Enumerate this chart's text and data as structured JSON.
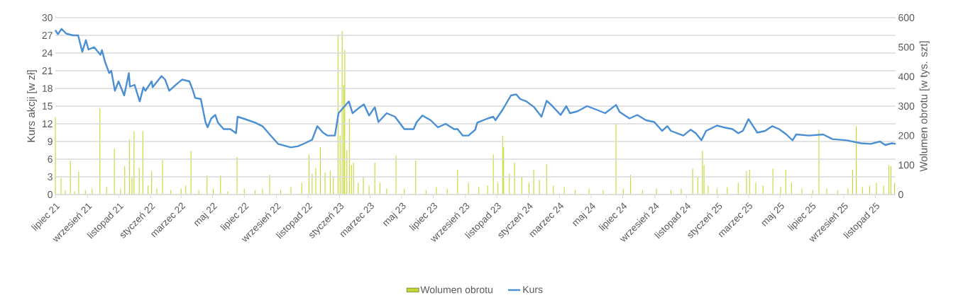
{
  "chart_data": {
    "type": "line",
    "ylabel": "Kurs akcji [w zł]",
    "y2label": "Wolumen obrotu [w tys. szt]",
    "xlim": [
      "2021-07-01",
      "2025-12-10"
    ],
    "xticks": [
      {
        "value": "2021-07-01",
        "label": "lipiec 21"
      },
      {
        "value": "2021-09-01",
        "label": "wrzesień 21"
      },
      {
        "value": "2021-11-01",
        "label": "listopad 21"
      },
      {
        "value": "2022-01-01",
        "label": "styczeń 22"
      },
      {
        "value": "2022-03-01",
        "label": "marzec 22"
      },
      {
        "value": "2022-05-01",
        "label": "maj 22"
      },
      {
        "value": "2022-07-01",
        "label": "lipiec 22"
      },
      {
        "value": "2022-09-01",
        "label": "wrzesień 22"
      },
      {
        "value": "2022-11-01",
        "label": "listopad 22"
      },
      {
        "value": "2023-01-01",
        "label": "styczeń 23"
      },
      {
        "value": "2023-03-01",
        "label": "marzec 23"
      },
      {
        "value": "2023-05-01",
        "label": "maj 23"
      },
      {
        "value": "2023-07-01",
        "label": "lipiec 23"
      },
      {
        "value": "2023-09-01",
        "label": "wrzesień 23"
      },
      {
        "value": "2023-11-01",
        "label": "listopad 23"
      },
      {
        "value": "2024-01-01",
        "label": "styczeń 24"
      },
      {
        "value": "2024-03-01",
        "label": "marzec 24"
      },
      {
        "value": "2024-05-01",
        "label": "maj 24"
      },
      {
        "value": "2024-07-01",
        "label": "lipiec 24"
      },
      {
        "value": "2024-09-01",
        "label": "wrzesień 24"
      },
      {
        "value": "2024-11-01",
        "label": "listopad 24"
      },
      {
        "value": "2025-01-01",
        "label": "styczeń 25"
      },
      {
        "value": "2025-03-01",
        "label": "marzec 25"
      },
      {
        "value": "2025-05-01",
        "label": "maj 25"
      },
      {
        "value": "2025-07-01",
        "label": "lipiec 25"
      },
      {
        "value": "2025-09-01",
        "label": "wrzesień 25"
      },
      {
        "value": "2025-11-01",
        "label": "listopad 25"
      }
    ],
    "ylim": [
      0,
      30
    ],
    "yticks": [
      0,
      3,
      6,
      9,
      12,
      15,
      18,
      21,
      24,
      27,
      30
    ],
    "y2lim": [
      0,
      600
    ],
    "y2ticks": [
      0,
      100,
      200,
      300,
      400,
      500,
      600
    ],
    "grid": "y",
    "legend": "bottom",
    "series": [
      {
        "name": "Wolumen obrotu",
        "type": "bar",
        "axis": "y2",
        "color": "#c3d82e",
        "x": [
          "2021-07-01",
          "2021-07-12",
          "2021-07-20",
          "2021-07-30",
          "2021-08-07",
          "2021-08-15",
          "2021-08-28",
          "2021-09-10",
          "2021-09-25",
          "2021-10-08",
          "2021-10-23",
          "2021-11-04",
          "2021-11-12",
          "2021-11-21",
          "2021-11-26",
          "2021-11-30",
          "2021-12-10",
          "2021-12-17",
          "2021-12-27",
          "2022-01-03",
          "2022-01-13",
          "2022-01-24",
          "2022-02-09",
          "2022-03-01",
          "2022-03-10",
          "2022-03-20",
          "2022-04-04",
          "2022-04-20",
          "2022-05-02",
          "2022-05-16",
          "2022-05-30",
          "2022-06-17",
          "2022-07-01",
          "2022-07-22",
          "2022-08-05",
          "2022-08-19",
          "2022-09-09",
          "2022-09-29",
          "2022-10-20",
          "2022-11-03",
          "2022-11-09",
          "2022-11-16",
          "2022-11-25",
          "2022-12-04",
          "2022-12-14",
          "2022-12-20",
          "2022-12-29",
          "2023-01-02",
          "2023-01-06",
          "2023-01-09",
          "2023-01-11",
          "2023-01-15",
          "2023-01-20",
          "2023-01-24",
          "2023-01-28",
          "2023-02-06",
          "2023-02-16",
          "2023-02-27",
          "2023-03-10",
          "2023-03-20",
          "2023-04-02",
          "2023-04-20",
          "2023-05-06",
          "2023-05-28",
          "2023-06-17",
          "2023-07-07",
          "2023-07-28",
          "2023-08-17",
          "2023-09-07",
          "2023-09-27",
          "2023-10-14",
          "2023-10-25",
          "2023-11-03",
          "2023-11-12",
          "2023-11-14",
          "2023-11-25",
          "2023-12-05",
          "2023-12-19",
          "2024-01-02",
          "2024-01-11",
          "2024-01-22",
          "2024-02-05",
          "2024-02-18",
          "2024-03-10",
          "2024-03-31",
          "2024-04-27",
          "2024-05-24",
          "2024-06-18",
          "2024-07-02",
          "2024-07-16",
          "2024-08-08",
          "2024-09-04",
          "2024-10-02",
          "2024-10-22",
          "2024-11-13",
          "2024-11-23",
          "2024-12-02",
          "2024-12-05",
          "2024-12-13",
          "2024-12-30",
          "2025-01-19",
          "2025-02-09",
          "2025-02-25",
          "2025-03-03",
          "2025-03-15",
          "2025-03-29",
          "2025-04-17",
          "2025-05-02",
          "2025-05-12",
          "2025-05-23",
          "2025-06-12",
          "2025-07-03",
          "2025-07-15",
          "2025-07-30",
          "2025-08-20",
          "2025-09-09",
          "2025-09-18",
          "2025-09-25",
          "2025-10-07",
          "2025-10-21",
          "2025-11-03",
          "2025-11-17",
          "2025-11-27",
          "2025-12-01",
          "2025-12-08"
        ],
        "values": [
          263,
          55,
          15,
          115,
          10,
          77,
          15,
          20,
          292,
          25,
          155,
          20,
          96,
          187,
          60,
          215,
          91,
          215,
          30,
          79,
          20,
          117,
          15,
          20,
          30,
          148,
          15,
          65,
          20,
          65,
          10,
          127,
          20,
          15,
          20,
          67,
          15,
          25,
          40,
          136,
          70,
          90,
          160,
          75,
          80,
          60,
          538,
          200,
          555,
          371,
          490,
          150,
          258,
          100,
          108,
          40,
          60,
          30,
          108,
          40,
          20,
          132,
          20,
          115,
          15,
          25,
          20,
          84,
          40,
          25,
          30,
          136,
          40,
          199,
          160,
          70,
          108,
          60,
          40,
          84,
          50,
          103,
          30,
          25,
          15,
          20,
          15,
          239,
          20,
          67,
          15,
          20,
          15,
          20,
          88,
          60,
          148,
          100,
          30,
          20,
          25,
          40,
          79,
          84,
          40,
          30,
          88,
          25,
          84,
          40,
          20,
          15,
          220,
          20,
          15,
          20,
          84,
          232,
          25,
          30,
          40,
          30,
          100,
          96,
          40
        ]
      },
      {
        "name": "Kurs",
        "color": "#4a8fd3",
        "x": [
          "2021-07-01",
          "2021-07-06",
          "2021-07-13",
          "2021-07-22",
          "2021-08-04",
          "2021-08-14",
          "2021-08-22",
          "2021-08-29",
          "2021-09-03",
          "2021-09-14",
          "2021-09-26",
          "2021-09-29",
          "2021-10-05",
          "2021-10-13",
          "2021-10-17",
          "2021-10-24",
          "2021-10-31",
          "2021-11-11",
          "2021-11-20",
          "2021-11-22",
          "2021-12-01",
          "2021-12-11",
          "2021-12-18",
          "2021-12-22",
          "2022-01-03",
          "2022-01-05",
          "2022-01-22",
          "2022-01-29",
          "2022-02-06",
          "2022-02-21",
          "2022-03-03",
          "2022-03-17",
          "2022-03-24",
          "2022-03-28",
          "2022-04-08",
          "2022-04-17",
          "2022-04-21",
          "2022-04-28",
          "2022-05-06",
          "2022-05-11",
          "2022-05-22",
          "2022-06-04",
          "2022-06-15",
          "2022-06-18",
          "2022-06-29",
          "2022-07-22",
          "2022-08-05",
          "2022-08-19",
          "2022-09-04",
          "2022-09-29",
          "2022-10-13",
          "2022-10-26",
          "2022-11-09",
          "2022-11-19",
          "2022-11-30",
          "2022-12-09",
          "2022-12-23",
          "2022-12-30",
          "2023-01-07",
          "2023-01-19",
          "2023-01-26",
          "2023-02-09",
          "2023-02-17",
          "2023-02-27",
          "2023-03-10",
          "2023-03-17",
          "2023-04-02",
          "2023-04-18",
          "2023-05-06",
          "2023-05-24",
          "2023-05-30",
          "2023-06-10",
          "2023-06-26",
          "2023-07-10",
          "2023-07-25",
          "2023-08-10",
          "2023-08-17",
          "2023-08-27",
          "2023-09-07",
          "2023-09-20",
          "2023-09-24",
          "2023-10-14",
          "2023-10-25",
          "2023-10-29",
          "2023-11-12",
          "2023-11-28",
          "2023-12-08",
          "2023-12-16",
          "2023-12-28",
          "2024-01-12",
          "2024-01-26",
          "2024-02-05",
          "2024-02-14",
          "2024-03-03",
          "2024-03-14",
          "2024-03-21",
          "2024-04-04",
          "2024-04-23",
          "2024-05-11",
          "2024-05-28",
          "2024-06-18",
          "2024-06-25",
          "2024-07-14",
          "2024-07-29",
          "2024-08-15",
          "2024-08-31",
          "2024-09-15",
          "2024-09-25",
          "2024-10-02",
          "2024-10-26",
          "2024-11-09",
          "2024-11-19",
          "2024-11-30",
          "2024-12-09",
          "2024-12-30",
          "2025-01-12",
          "2025-01-29",
          "2025-02-09",
          "2025-02-18",
          "2025-03-01",
          "2025-03-18",
          "2025-04-02",
          "2025-04-16",
          "2025-04-29",
          "2025-05-13",
          "2025-05-25",
          "2025-06-01",
          "2025-06-26",
          "2025-07-23",
          "2025-08-10",
          "2025-09-07",
          "2025-10-04",
          "2025-10-23",
          "2025-11-10",
          "2025-11-20",
          "2025-12-03",
          "2025-12-10"
        ],
        "values": [
          27.9,
          27.2,
          28.1,
          27.3,
          27.0,
          27.0,
          24.2,
          26.2,
          24.6,
          25.0,
          23.7,
          24.5,
          22.5,
          20.6,
          21.0,
          17.6,
          19.2,
          16.8,
          20.6,
          18.3,
          18.6,
          15.8,
          18.2,
          17.6,
          19.2,
          18.2,
          20.1,
          19.5,
          17.6,
          18.8,
          19.5,
          19.2,
          17.6,
          16.4,
          16.2,
          12.3,
          11.4,
          12.9,
          13.5,
          12.2,
          11.1,
          11.1,
          10.4,
          13.2,
          12.9,
          12.2,
          11.6,
          10.2,
          8.6,
          8.0,
          8.2,
          8.7,
          9.3,
          11.6,
          10.5,
          10.0,
          10.0,
          13.8,
          14.6,
          15.8,
          13.8,
          14.8,
          15.3,
          13.4,
          14.8,
          12.3,
          13.8,
          13.2,
          11.1,
          11.1,
          12.3,
          13.4,
          12.6,
          11.4,
          12.0,
          11.1,
          11.1,
          10.0,
          10.0,
          11.0,
          12.2,
          12.9,
          13.2,
          12.6,
          14.4,
          16.8,
          17.0,
          16.2,
          15.8,
          14.8,
          13.2,
          15.9,
          15.2,
          13.5,
          15.0,
          13.8,
          14.1,
          15.0,
          14.4,
          13.8,
          15.2,
          14.0,
          12.9,
          13.5,
          12.6,
          12.3,
          10.8,
          11.6,
          10.8,
          10.0,
          11.0,
          10.4,
          9.2,
          10.8,
          11.7,
          11.4,
          11.1,
          10.4,
          10.8,
          12.8,
          10.5,
          10.8,
          11.6,
          11.1,
          10.2,
          9.2,
          10.2,
          10.0,
          10.2,
          9.4,
          9.2,
          8.7,
          8.6,
          9.0,
          8.4,
          8.7,
          8.6
        ]
      }
    ]
  }
}
